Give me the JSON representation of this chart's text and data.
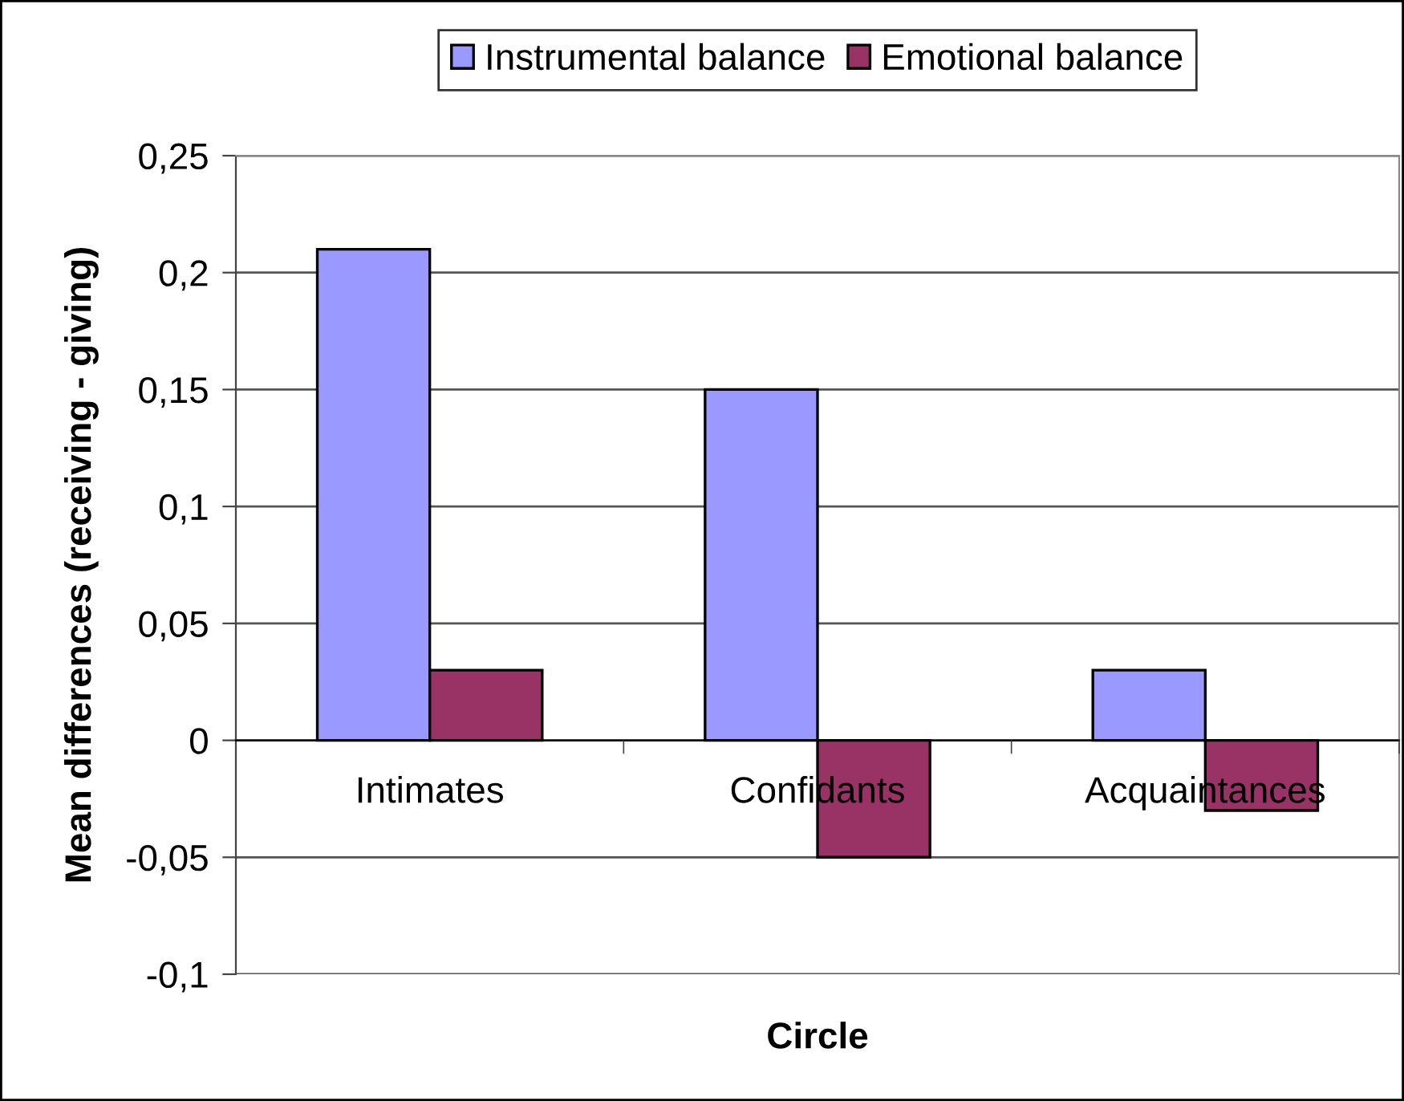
{
  "chart_data": {
    "type": "bar",
    "xlabel": "Circle",
    "ylabel": "Mean differences (receiving - giving)",
    "categories": [
      "Intimates",
      "Confidants",
      "Acquaintances"
    ],
    "series": [
      {
        "name": "Instrumental balance",
        "color": "#9999ff",
        "values": [
          0.21,
          0.15,
          0.03
        ]
      },
      {
        "name": "Emotional balance",
        "color": "#993366",
        "values": [
          0.03,
          -0.05,
          -0.03
        ]
      }
    ],
    "ylim": [
      -0.1,
      0.25
    ],
    "yticks": [
      {
        "value": -0.1,
        "label": "-0,1"
      },
      {
        "value": -0.05,
        "label": "-0,05"
      },
      {
        "value": 0,
        "label": "0"
      },
      {
        "value": 0.05,
        "label": "0,05"
      },
      {
        "value": 0.1,
        "label": "0,1"
      },
      {
        "value": 0.15,
        "label": "0,15"
      },
      {
        "value": 0.2,
        "label": "0,2"
      },
      {
        "value": 0.25,
        "label": "0,25"
      }
    ],
    "grid": "y",
    "legend": "top"
  }
}
